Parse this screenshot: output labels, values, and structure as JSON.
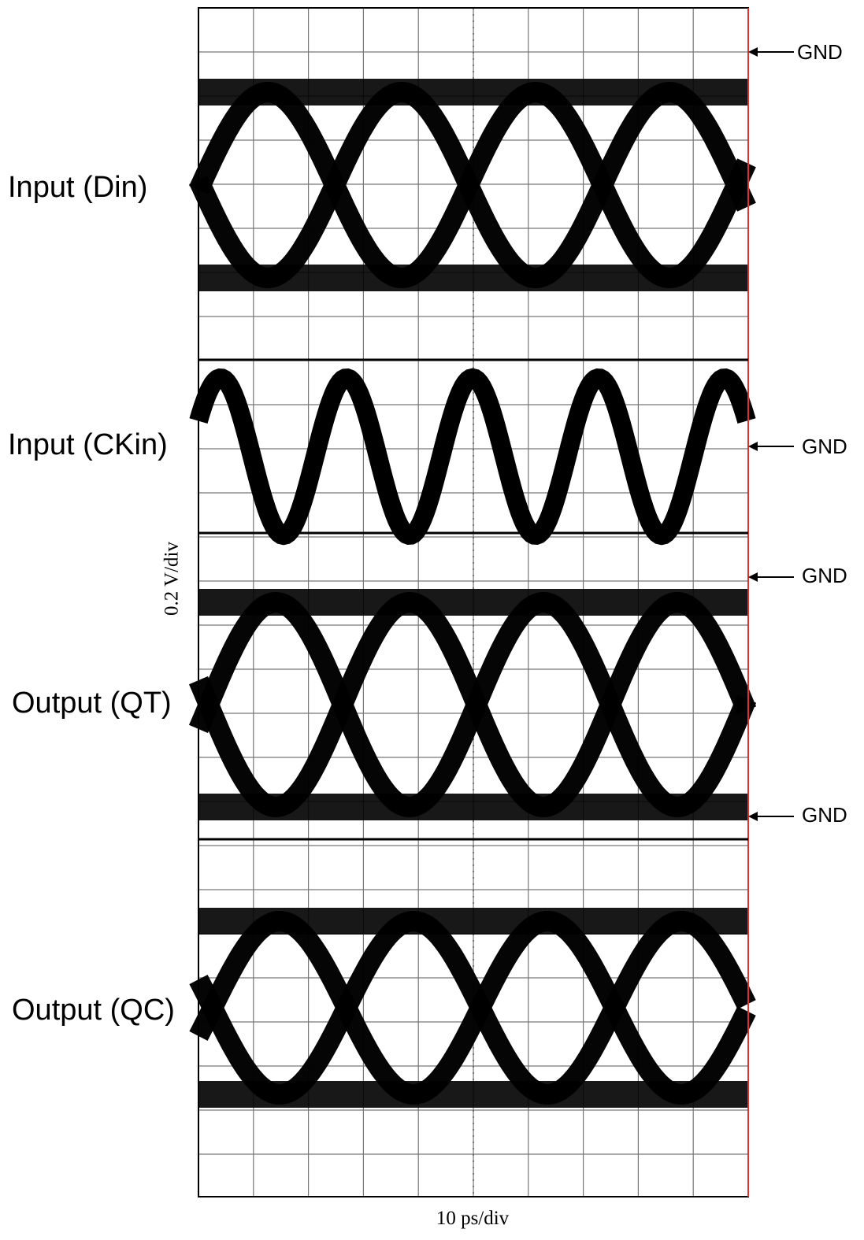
{
  "traces": [
    {
      "label": "Input (Din)"
    },
    {
      "label": "Input (CKin)"
    },
    {
      "label": "Output (QT)"
    },
    {
      "label": "Output (QC)"
    }
  ],
  "gnd_markers": [
    "GND",
    "GND",
    "GND",
    "GND"
  ],
  "y_axis_label": "0.2 V/div",
  "x_axis_label": "10 ps/div"
}
